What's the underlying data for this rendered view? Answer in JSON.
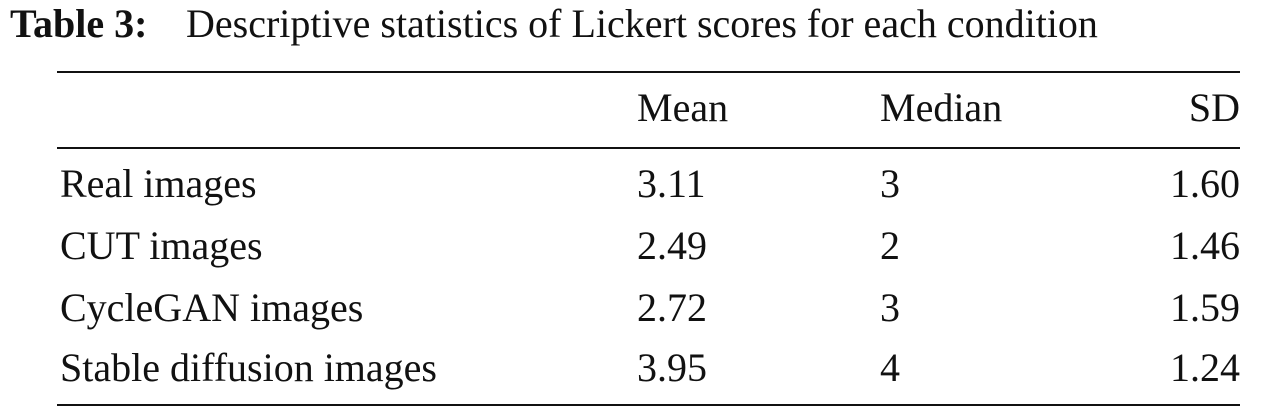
{
  "caption": {
    "label": "Table 3:",
    "text": "Descriptive statistics of Lickert scores for each condition"
  },
  "table": {
    "columns": [
      "Mean",
      "Median",
      "SD"
    ],
    "rows": [
      {
        "label": "Real images",
        "cells": [
          "3.11",
          "3",
          "1.60"
        ]
      },
      {
        "label": "CUT images",
        "cells": [
          "2.49",
          "2",
          "1.46"
        ]
      },
      {
        "label": "CycleGAN images",
        "cells": [
          "2.72",
          "3",
          "1.59"
        ]
      },
      {
        "label": "Stable diffusion images",
        "cells": [
          "3.95",
          "4",
          "1.24"
        ]
      }
    ]
  }
}
